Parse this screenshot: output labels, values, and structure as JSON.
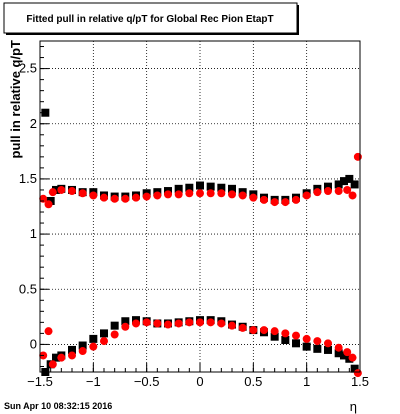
{
  "title": "Fitted pull in relative q/pT for Global Rec Pion EtapT",
  "footer": "Sun Apr 10 08:32:15 2016",
  "chart_data": {
    "type": "scatter",
    "title": "Fitted pull in relative q/pT for Global Rec Pion EtapT",
    "xlabel": "η",
    "ylabel": "pull in relative q/pT",
    "xlim": [
      -1.5,
      1.5
    ],
    "ylim": [
      -0.25,
      2.75
    ],
    "x_ticks": [
      -1.5,
      -1,
      -0.5,
      0,
      0.5,
      1,
      1.5
    ],
    "x_tick_labels": [
      "−1.5",
      "−1",
      "−0.5",
      "0",
      "0.5",
      "1",
      "1.5"
    ],
    "y_ticks": [
      0,
      0.5,
      1,
      1.5,
      2,
      2.5
    ],
    "y_tick_labels": [
      "0",
      "0.5",
      "1",
      "1.5",
      "2",
      "2.5"
    ],
    "grid": true,
    "legend": "none",
    "colors": {
      "black_series": "#000000",
      "red_series": "#ff0000"
    },
    "series": [
      {
        "group": "black_squares",
        "color": "#000000",
        "marker": "square",
        "x": [
          -1.45,
          -1.4,
          -1.35,
          -1.3,
          -1.2,
          -1.1,
          -1.0,
          -0.9,
          -0.8,
          -0.7,
          -0.6,
          -0.5,
          -0.4,
          -0.3,
          -0.2,
          -0.1,
          0.0,
          0.1,
          0.2,
          0.3,
          0.4,
          0.5,
          0.6,
          0.7,
          0.8,
          0.9,
          1.0,
          1.1,
          1.2,
          1.3,
          1.35,
          1.4,
          1.45
        ],
        "y_top": [
          2.1,
          1.3,
          1.4,
          1.41,
          1.4,
          1.38,
          1.38,
          1.35,
          1.34,
          1.34,
          1.35,
          1.37,
          1.38,
          1.39,
          1.41,
          1.42,
          1.44,
          1.43,
          1.42,
          1.41,
          1.38,
          1.36,
          1.33,
          1.31,
          1.31,
          1.33,
          1.37,
          1.41,
          1.43,
          1.45,
          1.48,
          1.5,
          1.45
        ],
        "y_bottom": [
          -0.25,
          -0.18,
          -0.12,
          -0.1,
          -0.05,
          -0.01,
          0.05,
          0.1,
          0.17,
          0.21,
          0.22,
          0.21,
          0.19,
          0.19,
          0.2,
          0.21,
          0.22,
          0.22,
          0.21,
          0.18,
          0.16,
          0.13,
          0.11,
          0.07,
          0.04,
          0.01,
          -0.02,
          -0.04,
          -0.05,
          -0.08,
          -0.1,
          -0.13,
          -0.22
        ]
      },
      {
        "group": "red_circles",
        "color": "#ff0000",
        "marker": "circle",
        "x": [
          -1.47,
          -1.42,
          -1.38,
          -1.3,
          -1.2,
          -1.1,
          -1.0,
          -0.9,
          -0.8,
          -0.7,
          -0.6,
          -0.5,
          -0.4,
          -0.3,
          -0.2,
          -0.1,
          0.0,
          0.1,
          0.2,
          0.3,
          0.4,
          0.5,
          0.6,
          0.7,
          0.8,
          0.9,
          1.0,
          1.1,
          1.2,
          1.3,
          1.38,
          1.43,
          1.48
        ],
        "y_top": [
          1.32,
          1.27,
          1.38,
          1.4,
          1.39,
          1.37,
          1.35,
          1.33,
          1.32,
          1.32,
          1.33,
          1.34,
          1.35,
          1.36,
          1.36,
          1.37,
          1.37,
          1.37,
          1.37,
          1.36,
          1.35,
          1.33,
          1.31,
          1.29,
          1.29,
          1.31,
          1.35,
          1.38,
          1.39,
          1.39,
          1.4,
          1.35,
          1.7
        ],
        "y_bottom": [
          -0.1,
          0.12,
          -0.18,
          -0.12,
          -0.1,
          -0.06,
          -0.02,
          0.03,
          0.09,
          0.16,
          0.19,
          0.2,
          0.19,
          0.18,
          0.19,
          0.2,
          0.2,
          0.2,
          0.19,
          0.17,
          0.15,
          0.13,
          0.13,
          0.12,
          0.1,
          0.08,
          0.05,
          0.03,
          0.01,
          -0.03,
          -0.07,
          -0.12,
          -0.26
        ]
      }
    ]
  }
}
